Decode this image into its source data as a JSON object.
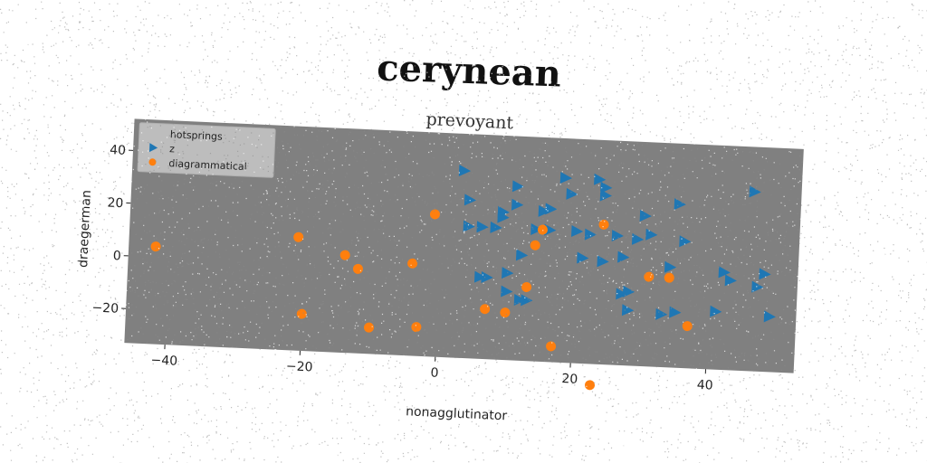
{
  "chart_data": {
    "type": "scatter",
    "title": "cerynean",
    "subtitle": "prevoyant",
    "xlabel": "nonagglutinator",
    "ylabel": "draegerman",
    "xlim": [
      -46,
      53
    ],
    "ylim": [
      -33,
      52
    ],
    "xticks": [
      -40,
      -20,
      0,
      20,
      40
    ],
    "yticks": [
      -20,
      0,
      20,
      40
    ],
    "grid": false,
    "legend_position": "top-left",
    "background": "#808080",
    "series": [
      {
        "name": "hotsprings",
        "marker": "none",
        "color": "#cccccc",
        "points": []
      },
      {
        "name": "z",
        "marker": "triangle-right",
        "color": "#1f77b4",
        "points": [
          [
            3,
            38
          ],
          [
            4,
            27
          ],
          [
            4,
            17
          ],
          [
            6,
            17
          ],
          [
            6,
            -2
          ],
          [
            7,
            -2
          ],
          [
            8,
            17
          ],
          [
            9,
            23
          ],
          [
            9,
            21
          ],
          [
            10,
            0
          ],
          [
            10,
            -7
          ],
          [
            11,
            26
          ],
          [
            11,
            33
          ],
          [
            12,
            7
          ],
          [
            12,
            -10
          ],
          [
            13,
            -10
          ],
          [
            14,
            17
          ],
          [
            15,
            24
          ],
          [
            16,
            25
          ],
          [
            16,
            17
          ],
          [
            18,
            37
          ],
          [
            19,
            31
          ],
          [
            20,
            17
          ],
          [
            21,
            7
          ],
          [
            22,
            16
          ],
          [
            23,
            37
          ],
          [
            24,
            34
          ],
          [
            24,
            31
          ],
          [
            24,
            6
          ],
          [
            26,
            16
          ],
          [
            27,
            8
          ],
          [
            27,
            -6
          ],
          [
            28,
            -12
          ],
          [
            28,
            -5
          ],
          [
            29,
            15
          ],
          [
            30,
            24
          ],
          [
            31,
            17
          ],
          [
            33,
            -13
          ],
          [
            34,
            5
          ],
          [
            35,
            29
          ],
          [
            35,
            -12
          ],
          [
            36,
            15
          ],
          [
            41,
            -11
          ],
          [
            42,
            4
          ],
          [
            43,
            1
          ],
          [
            46,
            35
          ],
          [
            47,
            -1
          ],
          [
            48,
            4
          ],
          [
            49,
            -12
          ]
        ]
      },
      {
        "name": "diagrammatical",
        "marker": "circle",
        "color": "#ff7f0e",
        "points": [
          [
            -42,
            4
          ],
          [
            -21,
            10
          ],
          [
            -20,
            -19
          ],
          [
            -14,
            4
          ],
          [
            -12,
            -1
          ],
          [
            -10,
            -23
          ],
          [
            -4,
            2
          ],
          [
            -3,
            -22
          ],
          [
            -1,
            21
          ],
          [
            7,
            -14
          ],
          [
            10,
            -15
          ],
          [
            13,
            -5
          ],
          [
            14,
            11
          ],
          [
            15,
            17
          ],
          [
            17,
            -27
          ],
          [
            23,
            -41
          ],
          [
            24,
            20
          ],
          [
            31,
            1
          ],
          [
            34,
            1
          ],
          [
            37,
            -17
          ]
        ]
      }
    ]
  }
}
